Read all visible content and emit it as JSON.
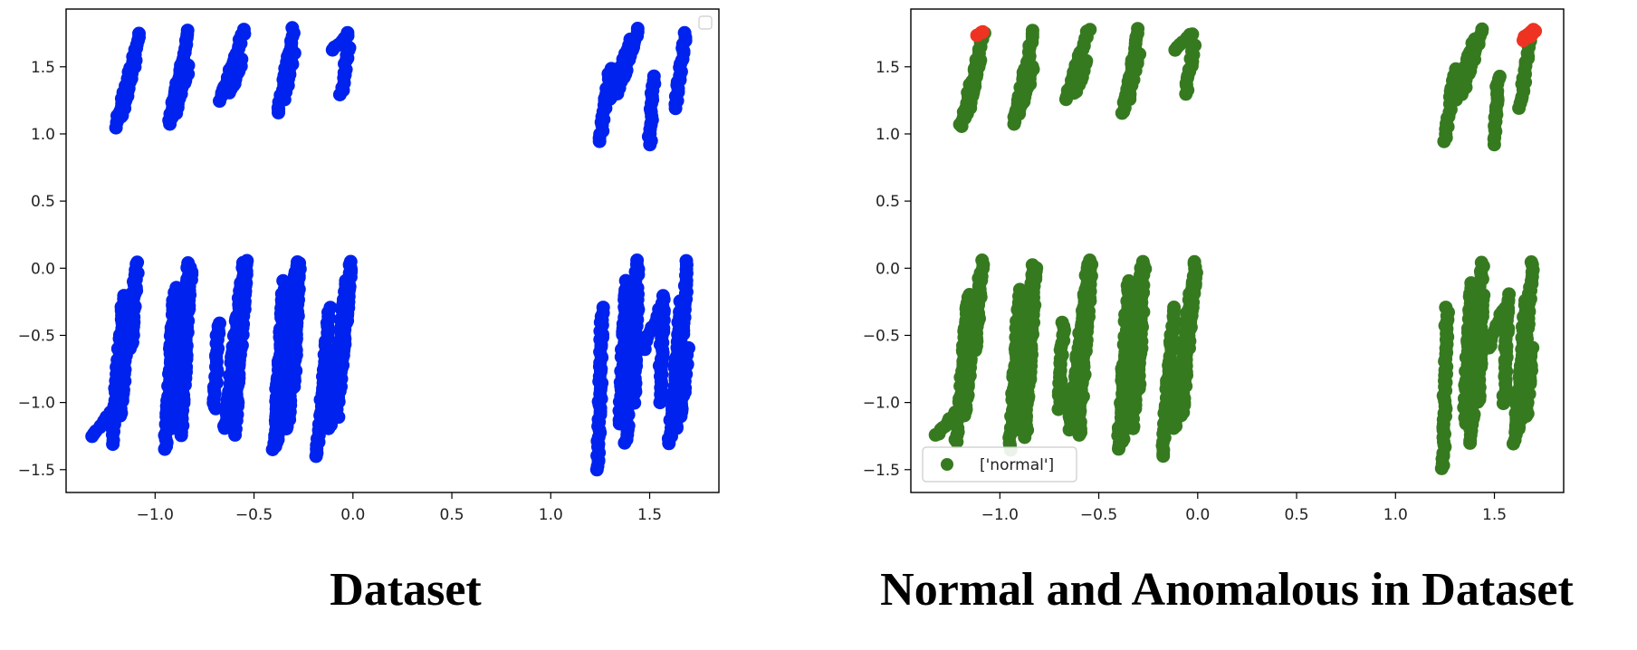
{
  "panels": [
    {
      "caption": "Dataset",
      "legend": {
        "visible": true,
        "entries": []
      }
    },
    {
      "caption": "Normal and Anomalous in Dataset",
      "legend": {
        "visible": true,
        "entries": [
          {
            "label": "['normal']",
            "color": "#367a20"
          }
        ]
      }
    }
  ],
  "chart_data": [
    {
      "type": "scatter",
      "xlim": [
        -1.45,
        1.85
      ],
      "ylim": [
        -1.67,
        1.93
      ],
      "xticks": [
        "−1.0",
        "−0.5",
        "0.0",
        "0.5",
        "1.0",
        "1.5"
      ],
      "yticks": [
        "1.5",
        "1.0",
        "0.5",
        "0.0",
        "−0.5",
        "−1.0",
        "−1.5"
      ],
      "grid": false,
      "legend_position": "top-right",
      "series": [
        {
          "color": "#0022ee",
          "role": "all",
          "segments": [
            [
              -1.2,
              1.05,
              -1.08,
              1.75
            ],
            [
              -1.17,
              1.12,
              -1.1,
              1.55
            ],
            [
              -0.93,
              1.07,
              -0.83,
              1.77
            ],
            [
              -0.9,
              1.15,
              -0.83,
              1.5
            ],
            [
              -0.67,
              1.25,
              -0.55,
              1.78
            ],
            [
              -0.62,
              1.3,
              -0.56,
              1.55
            ],
            [
              -0.38,
              1.15,
              -0.3,
              1.78
            ],
            [
              -0.35,
              1.25,
              -0.3,
              1.6
            ],
            [
              -0.11,
              1.62,
              -0.02,
              1.75
            ],
            [
              -0.06,
              1.3,
              -0.02,
              1.65
            ],
            [
              1.25,
              0.95,
              1.3,
              1.48
            ],
            [
              1.3,
              1.25,
              1.4,
              1.7
            ],
            [
              1.34,
              1.3,
              1.44,
              1.78
            ],
            [
              1.5,
              0.93,
              1.52,
              1.43
            ],
            [
              1.63,
              1.2,
              1.68,
              1.75
            ],
            [
              -1.32,
              -1.25,
              -1.18,
              -1.0
            ],
            [
              -1.22,
              -1.3,
              -1.16,
              -0.2
            ],
            [
              -1.18,
              -1.1,
              -1.1,
              -0.05
            ],
            [
              -1.12,
              -0.6,
              -1.09,
              0.05
            ],
            [
              -0.95,
              -1.35,
              -0.9,
              -0.15
            ],
            [
              -0.92,
              -1.2,
              -0.83,
              -0.05
            ],
            [
              -0.87,
              -1.25,
              -0.82,
              0.0
            ],
            [
              -0.85,
              -0.8,
              -0.83,
              0.03
            ],
            [
              -0.7,
              -1.05,
              -0.68,
              -0.4
            ],
            [
              -0.65,
              -1.2,
              -0.55,
              0.05
            ],
            [
              -0.6,
              -1.25,
              -0.54,
              0.0
            ],
            [
              -0.58,
              -0.6,
              -0.54,
              0.05
            ],
            [
              -0.4,
              -1.35,
              -0.35,
              -0.1
            ],
            [
              -0.38,
              -1.3,
              -0.28,
              0.05
            ],
            [
              -0.33,
              -1.2,
              -0.27,
              0.03
            ],
            [
              -0.3,
              -0.9,
              -0.28,
              -0.3
            ],
            [
              -0.18,
              -1.4,
              -0.12,
              -0.3
            ],
            [
              -0.12,
              -1.2,
              -0.03,
              -0.1
            ],
            [
              -0.08,
              -1.1,
              -0.01,
              0.05
            ],
            [
              -0.05,
              -0.6,
              -0.01,
              0.0
            ],
            [
              1.24,
              -1.5,
              1.26,
              -0.3
            ],
            [
              1.35,
              -1.15,
              1.38,
              -0.1
            ],
            [
              1.38,
              -1.3,
              1.44,
              0.05
            ],
            [
              1.42,
              -1.0,
              1.44,
              -0.2
            ],
            [
              1.47,
              -0.6,
              1.55,
              -0.3
            ],
            [
              1.55,
              -1.0,
              1.57,
              -0.2
            ],
            [
              1.6,
              -1.3,
              1.66,
              -0.25
            ],
            [
              1.63,
              -1.2,
              1.69,
              0.05
            ],
            [
              1.66,
              -1.1,
              1.69,
              -0.6
            ]
          ]
        },
        {
          "name": "['normal']",
          "color": "#367a20",
          "role": "normal",
          "segments": [
            [
              -1.2,
              1.05,
              -1.08,
              1.75
            ],
            [
              -1.17,
              1.12,
              -1.1,
              1.55
            ],
            [
              -0.93,
              1.07,
              -0.83,
              1.77
            ],
            [
              -0.9,
              1.15,
              -0.83,
              1.5
            ],
            [
              -0.67,
              1.25,
              -0.55,
              1.78
            ],
            [
              -0.62,
              1.3,
              -0.56,
              1.55
            ],
            [
              -0.38,
              1.15,
              -0.3,
              1.78
            ],
            [
              -0.35,
              1.25,
              -0.3,
              1.6
            ],
            [
              -0.11,
              1.62,
              -0.02,
              1.75
            ],
            [
              -0.06,
              1.3,
              -0.02,
              1.65
            ],
            [
              1.25,
              0.95,
              1.3,
              1.48
            ],
            [
              1.3,
              1.25,
              1.4,
              1.7
            ],
            [
              1.34,
              1.3,
              1.44,
              1.78
            ],
            [
              1.5,
              0.93,
              1.52,
              1.43
            ],
            [
              1.63,
              1.2,
              1.68,
              1.72
            ],
            [
              -1.32,
              -1.25,
              -1.18,
              -1.0
            ],
            [
              -1.22,
              -1.3,
              -1.16,
              -0.2
            ],
            [
              -1.18,
              -1.1,
              -1.1,
              -0.05
            ],
            [
              -1.12,
              -0.6,
              -1.09,
              0.05
            ],
            [
              -0.95,
              -1.35,
              -0.9,
              -0.15
            ],
            [
              -0.92,
              -1.2,
              -0.83,
              -0.05
            ],
            [
              -0.87,
              -1.25,
              -0.82,
              0.0
            ],
            [
              -0.85,
              -0.8,
              -0.83,
              0.03
            ],
            [
              -0.7,
              -1.05,
              -0.68,
              -0.4
            ],
            [
              -0.65,
              -1.2,
              -0.55,
              0.05
            ],
            [
              -0.6,
              -1.25,
              -0.54,
              0.0
            ],
            [
              -0.58,
              -0.6,
              -0.54,
              0.05
            ],
            [
              -0.4,
              -1.35,
              -0.35,
              -0.1
            ],
            [
              -0.38,
              -1.3,
              -0.28,
              0.05
            ],
            [
              -0.33,
              -1.2,
              -0.27,
              0.03
            ],
            [
              -0.3,
              -0.9,
              -0.28,
              -0.3
            ],
            [
              -0.18,
              -1.4,
              -0.12,
              -0.3
            ],
            [
              -0.12,
              -1.2,
              -0.03,
              -0.1
            ],
            [
              -0.08,
              -1.1,
              -0.01,
              0.05
            ],
            [
              -0.05,
              -0.6,
              -0.01,
              0.0
            ],
            [
              1.24,
              -1.5,
              1.26,
              -0.3
            ],
            [
              1.35,
              -1.15,
              1.38,
              -0.1
            ],
            [
              1.38,
              -1.3,
              1.44,
              0.05
            ],
            [
              1.42,
              -1.0,
              1.44,
              -0.2
            ],
            [
              1.47,
              -0.6,
              1.55,
              -0.3
            ],
            [
              1.55,
              -1.0,
              1.57,
              -0.2
            ],
            [
              1.6,
              -1.3,
              1.66,
              -0.25
            ],
            [
              1.63,
              -1.2,
              1.69,
              0.05
            ],
            [
              1.66,
              -1.1,
              1.69,
              -0.6
            ]
          ]
        },
        {
          "color": "#ee3322",
          "role": "anomalous",
          "segments": [
            [
              -1.12,
              1.74,
              -1.08,
              1.76
            ],
            [
              1.64,
              1.7,
              1.7,
              1.78
            ],
            [
              1.66,
              1.72,
              1.7,
              1.76
            ]
          ]
        }
      ]
    }
  ]
}
